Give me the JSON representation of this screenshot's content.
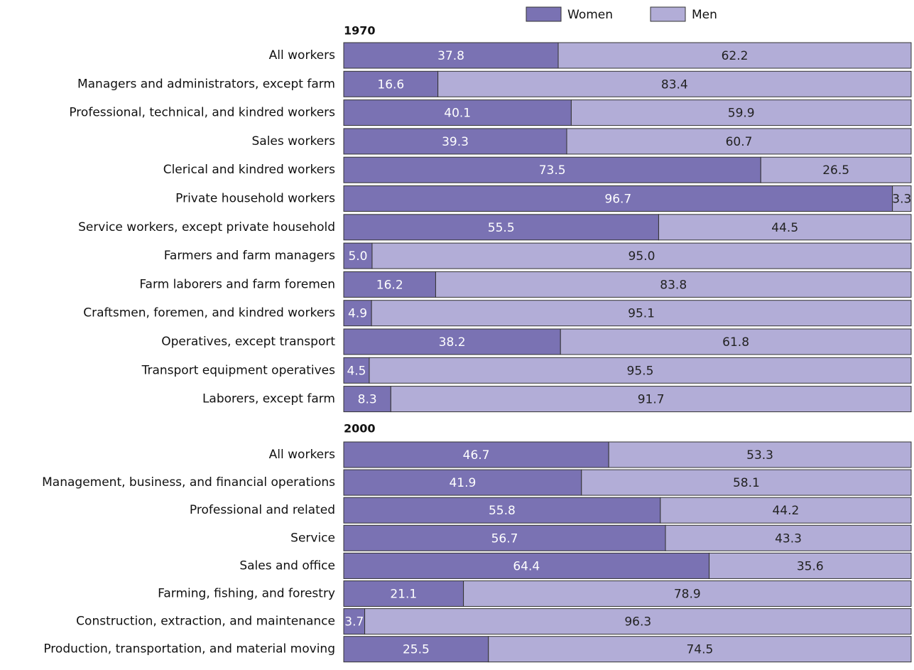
{
  "chart_data": {
    "type": "bar",
    "stacked": true,
    "orientation": "horizontal",
    "xlim": [
      0,
      100
    ],
    "legend": [
      {
        "name": "Women",
        "color": "#7a72b3"
      },
      {
        "name": "Men",
        "color": "#b2add7"
      }
    ],
    "groups": [
      {
        "title": "1970",
        "categories": [
          "All workers",
          "Managers and administrators, except farm",
          "Professional, technical, and kindred workers",
          "Sales workers",
          "Clerical and kindred workers",
          "Private household workers",
          "Service workers, except private household",
          "Farmers and farm managers",
          "Farm laborers and farm foremen",
          "Craftsmen, foremen, and kindred workers",
          "Operatives, except transport",
          "Transport equipment operatives",
          "Laborers, except farm"
        ],
        "series": [
          {
            "values": [
              37.8,
              16.6,
              40.1,
              39.3,
              73.5,
              96.7,
              55.5,
              5,
              16.2,
              4.9,
              38.2,
              4.5,
              8.3
            ],
            "value_labels": [
              "37.8",
              "16.6",
              "40.1",
              "39.3",
              "73.5",
              "96.7",
              "55.5",
              "5.0",
              "16.2",
              "4.9",
              "38.2",
              "4.5",
              "8.3"
            ]
          },
          {
            "values": [
              62.2,
              83.4,
              59.9,
              60.7,
              26.5,
              3.3,
              44.5,
              95,
              83.8,
              95.1,
              61.8,
              95.5,
              91.7
            ],
            "value_labels": [
              "62.2",
              "83.4",
              "59.9",
              "60.7",
              "26.5",
              "3.3",
              "44.5",
              "95.0",
              "83.8",
              "95.1",
              "61.8",
              "95.5",
              "91.7"
            ]
          }
        ]
      },
      {
        "title": "2000",
        "categories": [
          "All workers",
          "Management, business, and financial operations",
          "Professional and related",
          "Service",
          "Sales and office",
          "Farming, fishing, and forestry",
          "Construction, extraction, and maintenance",
          "Production, transportation, and material moving"
        ],
        "series": [
          {
            "values": [
              46.7,
              41.9,
              55.8,
              56.7,
              64.4,
              21.1,
              3.7,
              25.5
            ],
            "value_labels": [
              "46.7",
              "41.9",
              "55.8",
              "56.7",
              "64.4",
              "21.1",
              "3.7",
              "25.5"
            ]
          },
          {
            "values": [
              53.3,
              58.1,
              44.2,
              43.3,
              35.6,
              78.9,
              96.3,
              74.5
            ],
            "value_labels": [
              "53.3",
              "58.1",
              "44.2",
              "43.3",
              "35.6",
              "78.9",
              "96.3",
              "74.5"
            ]
          }
        ]
      }
    ]
  }
}
